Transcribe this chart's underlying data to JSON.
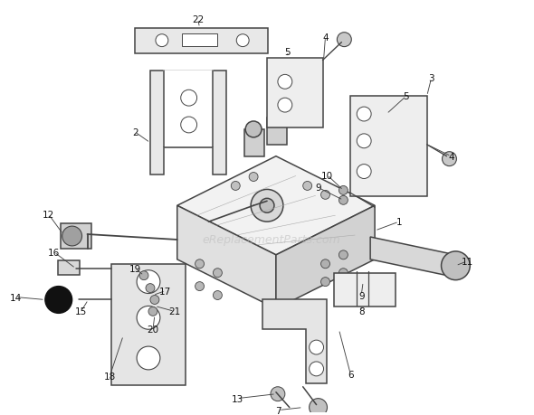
{
  "bg_color": "#ffffff",
  "line_color": "#444444",
  "label_color": "#111111",
  "watermark": "eReplacementParts.com",
  "watermark_color": "#bbbbbb",
  "fig_width": 5.9,
  "fig_height": 4.6,
  "dpi": 100
}
